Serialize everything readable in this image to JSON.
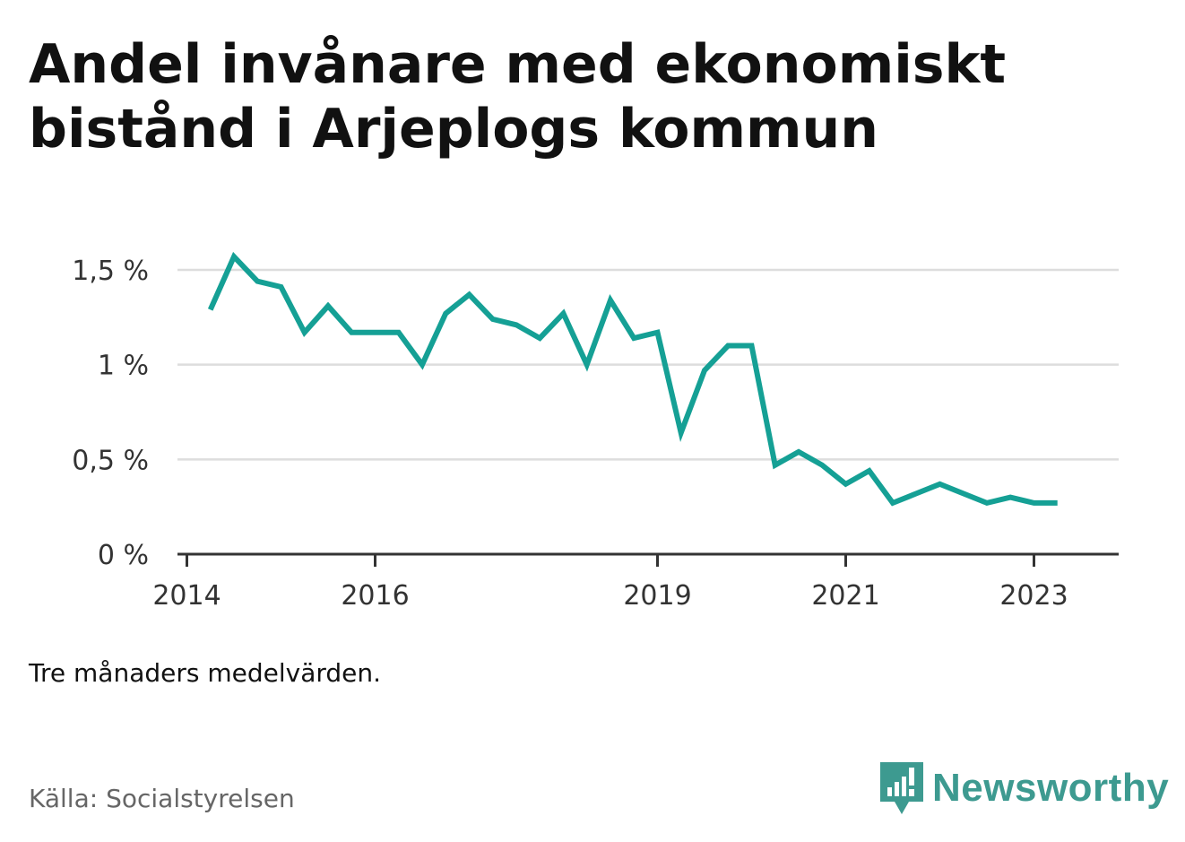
{
  "title": "Andel invånare med ekonomiskt bistånd i Arjeplogs kommun",
  "note": "Tre månaders medelvärden.",
  "source": "Källa: Socialstyrelsen",
  "brand": {
    "name": "Newsworthy",
    "logo_icon": "newsworthy-bar-chart-speech-bubble",
    "color": "#3d9a90"
  },
  "colors": {
    "line": "#15a095",
    "grid": "#dddddd",
    "axis": "#333333"
  },
  "chart_data": {
    "type": "line",
    "title": "Andel invånare med ekonomiskt bistånd i Arjeplogs kommun",
    "xlabel": "",
    "ylabel": "",
    "x_unit": "year (quarterly)",
    "y_unit": "%",
    "ylim": [
      0,
      1.5
    ],
    "grid": true,
    "legend": "none",
    "x_ticks": [
      {
        "value": 2014,
        "label": "2014"
      },
      {
        "value": 2016,
        "label": "2016"
      },
      {
        "value": 2019,
        "label": "2019"
      },
      {
        "value": 2021,
        "label": "2021"
      },
      {
        "value": 2023,
        "label": "2023"
      }
    ],
    "y_ticks": [
      {
        "value": 0,
        "label": "0 %"
      },
      {
        "value": 0.5,
        "label": "0,5 %"
      },
      {
        "value": 1.0,
        "label": "1 %"
      },
      {
        "value": 1.5,
        "label": "1,5 %"
      }
    ],
    "series": [
      {
        "x": [
          2014.25,
          2014.5,
          2014.75,
          2015.0,
          2015.25,
          2015.5,
          2015.75,
          2016.0,
          2016.25,
          2016.5,
          2016.75,
          2017.0,
          2017.25,
          2017.5,
          2017.75,
          2018.0,
          2018.25,
          2018.5,
          2018.75,
          2019.0,
          2019.25,
          2019.5,
          2019.75,
          2020.0,
          2020.25,
          2020.5,
          2020.75,
          2021.0,
          2021.25,
          2021.5,
          2021.75,
          2022.0,
          2022.25,
          2022.5,
          2022.75,
          2023.0,
          2023.25
        ],
        "values": [
          1.29,
          1.57,
          1.44,
          1.41,
          1.17,
          1.31,
          1.17,
          1.17,
          1.17,
          1.0,
          1.27,
          1.37,
          1.24,
          1.21,
          1.14,
          1.27,
          1.0,
          1.34,
          1.14,
          1.17,
          0.64,
          0.97,
          1.1,
          1.1,
          0.47,
          0.54,
          0.47,
          0.37,
          0.44,
          0.27,
          0.32,
          0.37,
          0.32,
          0.27,
          0.3,
          0.27,
          0.27
        ]
      }
    ]
  }
}
